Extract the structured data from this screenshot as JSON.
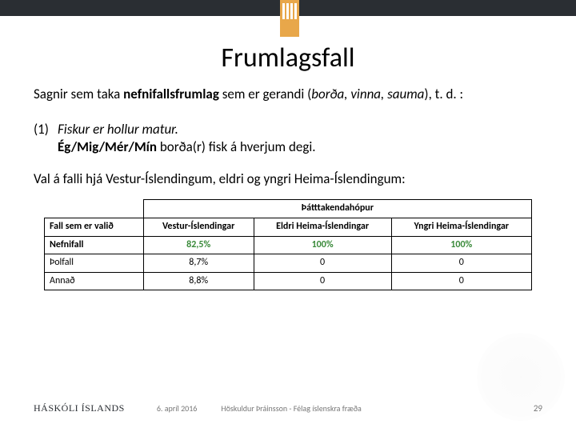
{
  "title": "Frumlagsfall",
  "para1": {
    "pre": "Sagnir sem taka ",
    "bold": "nefnifallsfrumlag",
    "mid": " sem er gerandi (",
    "italic": "borða, vinna, sauma",
    "post": "), t. d. :"
  },
  "example": {
    "num": "(1)",
    "line1": "Fiskur er hollur matur.",
    "line2_bold": "Ég/Mig/Mér/Mín",
    "line2_rest": " borða(r) fisk á hverjum degi."
  },
  "para3": "Val á falli hjá Vestur-Íslendingum, eldri og yngri Heima-Íslendingum:",
  "table": {
    "super_header": "Þátttakendahópur",
    "col0": "Fall sem er valið",
    "cols": [
      "Vestur-Íslendingar",
      "Eldri Heima-Íslendingar",
      "Yngri Heima-Íslendingar"
    ],
    "rows": [
      {
        "label": "Nefnifall",
        "bold": true,
        "green": true,
        "cells": [
          "82,5%",
          "100%",
          "100%"
        ]
      },
      {
        "label": "Þolfall",
        "bold": false,
        "green": false,
        "cells": [
          "8,7%",
          "0",
          "0"
        ]
      },
      {
        "label": "Annað",
        "bold": false,
        "green": false,
        "cells": [
          "8,8%",
          "0",
          "0"
        ]
      }
    ]
  },
  "footer": {
    "uni": "HÁSKÓLI ÍSLANDS",
    "date": "6. apríl 2016",
    "credit": "Höskuldur Þráinsson - Félag íslenskra fræða",
    "page": "29"
  },
  "colors": {
    "topbar": "#2a2e33",
    "logo": "#e8a74a",
    "green": "#3a8a3a"
  }
}
